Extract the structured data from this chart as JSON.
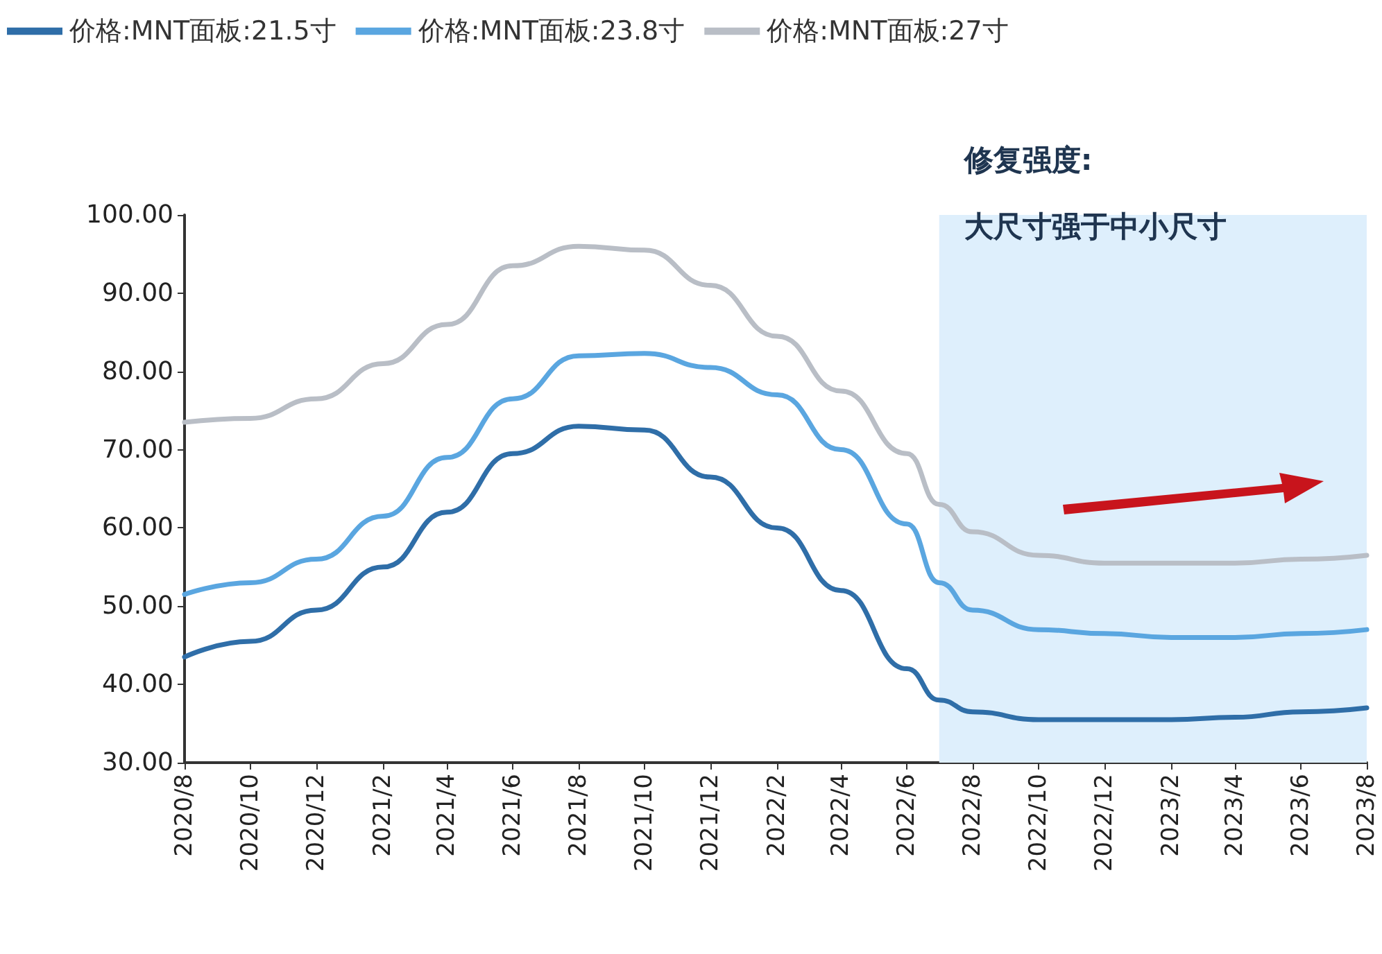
{
  "chart_data": {
    "type": "line",
    "x": [
      "2020-08",
      "2020-10",
      "2020-12",
      "2021-02",
      "2021-04",
      "2021-06",
      "2021-08",
      "2021-10",
      "2021-12",
      "2022-02",
      "2022-04",
      "2022-06",
      "2022-07",
      "2022-08",
      "2022-10",
      "2022-12",
      "2023-02",
      "2023-04",
      "2023-06",
      "2023-08"
    ],
    "series": [
      {
        "name": "价格:MNT面板:21.5寸",
        "color": "#2f6ea8",
        "values": [
          43.5,
          45.5,
          49.5,
          55,
          62,
          69.5,
          73,
          72.5,
          66.5,
          60,
          52,
          42,
          38,
          36.5,
          35.5,
          35.5,
          35.5,
          35.8,
          36.5,
          37
        ]
      },
      {
        "name": "价格:MNT面板:23.8寸",
        "color": "#5aa6e0",
        "values": [
          51.5,
          53,
          56,
          61.5,
          69,
          76.5,
          82,
          82.3,
          80.5,
          77,
          70,
          60.5,
          53,
          49.5,
          47,
          46.5,
          46,
          46,
          46.5,
          47
        ]
      },
      {
        "name": "价格:MNT面板:27寸",
        "color": "#b9bec6",
        "values": [
          73.5,
          74,
          76.5,
          81,
          86,
          93.5,
          96,
          95.5,
          91,
          84.5,
          77.5,
          69.5,
          63,
          59.5,
          56.5,
          55.5,
          55.5,
          55.5,
          56,
          56.5
        ]
      }
    ],
    "xlim": [
      "2020-08",
      "2023-08"
    ],
    "xticks": [
      {
        "value": "2020-08",
        "label": "2020/8"
      },
      {
        "value": "2020-10",
        "label": "2020/10"
      },
      {
        "value": "2020-12",
        "label": "2020/12"
      },
      {
        "value": "2021-02",
        "label": "2021/2"
      },
      {
        "value": "2021-04",
        "label": "2021/4"
      },
      {
        "value": "2021-06",
        "label": "2021/6"
      },
      {
        "value": "2021-08",
        "label": "2021/8"
      },
      {
        "value": "2021-10",
        "label": "2021/10"
      },
      {
        "value": "2021-12",
        "label": "2021/12"
      },
      {
        "value": "2022-02",
        "label": "2022/2"
      },
      {
        "value": "2022-04",
        "label": "2022/4"
      },
      {
        "value": "2022-06",
        "label": "2022/6"
      },
      {
        "value": "2022-08",
        "label": "2022/8"
      },
      {
        "value": "2022-10",
        "label": "2022/10"
      },
      {
        "value": "2022-12",
        "label": "2022/12"
      },
      {
        "value": "2023-02",
        "label": "2023/2"
      },
      {
        "value": "2023-04",
        "label": "2023/4"
      },
      {
        "value": "2023-06",
        "label": "2023/6"
      },
      {
        "value": "2023-08",
        "label": "2023/8"
      }
    ],
    "ylim": [
      30,
      100
    ],
    "yticks": [
      {
        "value": 30,
        "label": "30.00"
      },
      {
        "value": 40,
        "label": "40.00"
      },
      {
        "value": 50,
        "label": "50.00"
      },
      {
        "value": 60,
        "label": "60.00"
      },
      {
        "value": 70,
        "label": "70.00"
      },
      {
        "value": 80,
        "label": "80.00"
      },
      {
        "value": 90,
        "label": "90.00"
      },
      {
        "value": 100,
        "label": "100.00"
      }
    ],
    "bands": [
      {
        "axis": "x",
        "from": "2022-07",
        "to": "2023-08",
        "color": "#deeffc"
      }
    ],
    "annotations": [
      "修复强度:",
      "大尺寸强于中小尺寸"
    ],
    "legend": "top",
    "grid": false,
    "marker": "none",
    "line_style": "solid"
  }
}
